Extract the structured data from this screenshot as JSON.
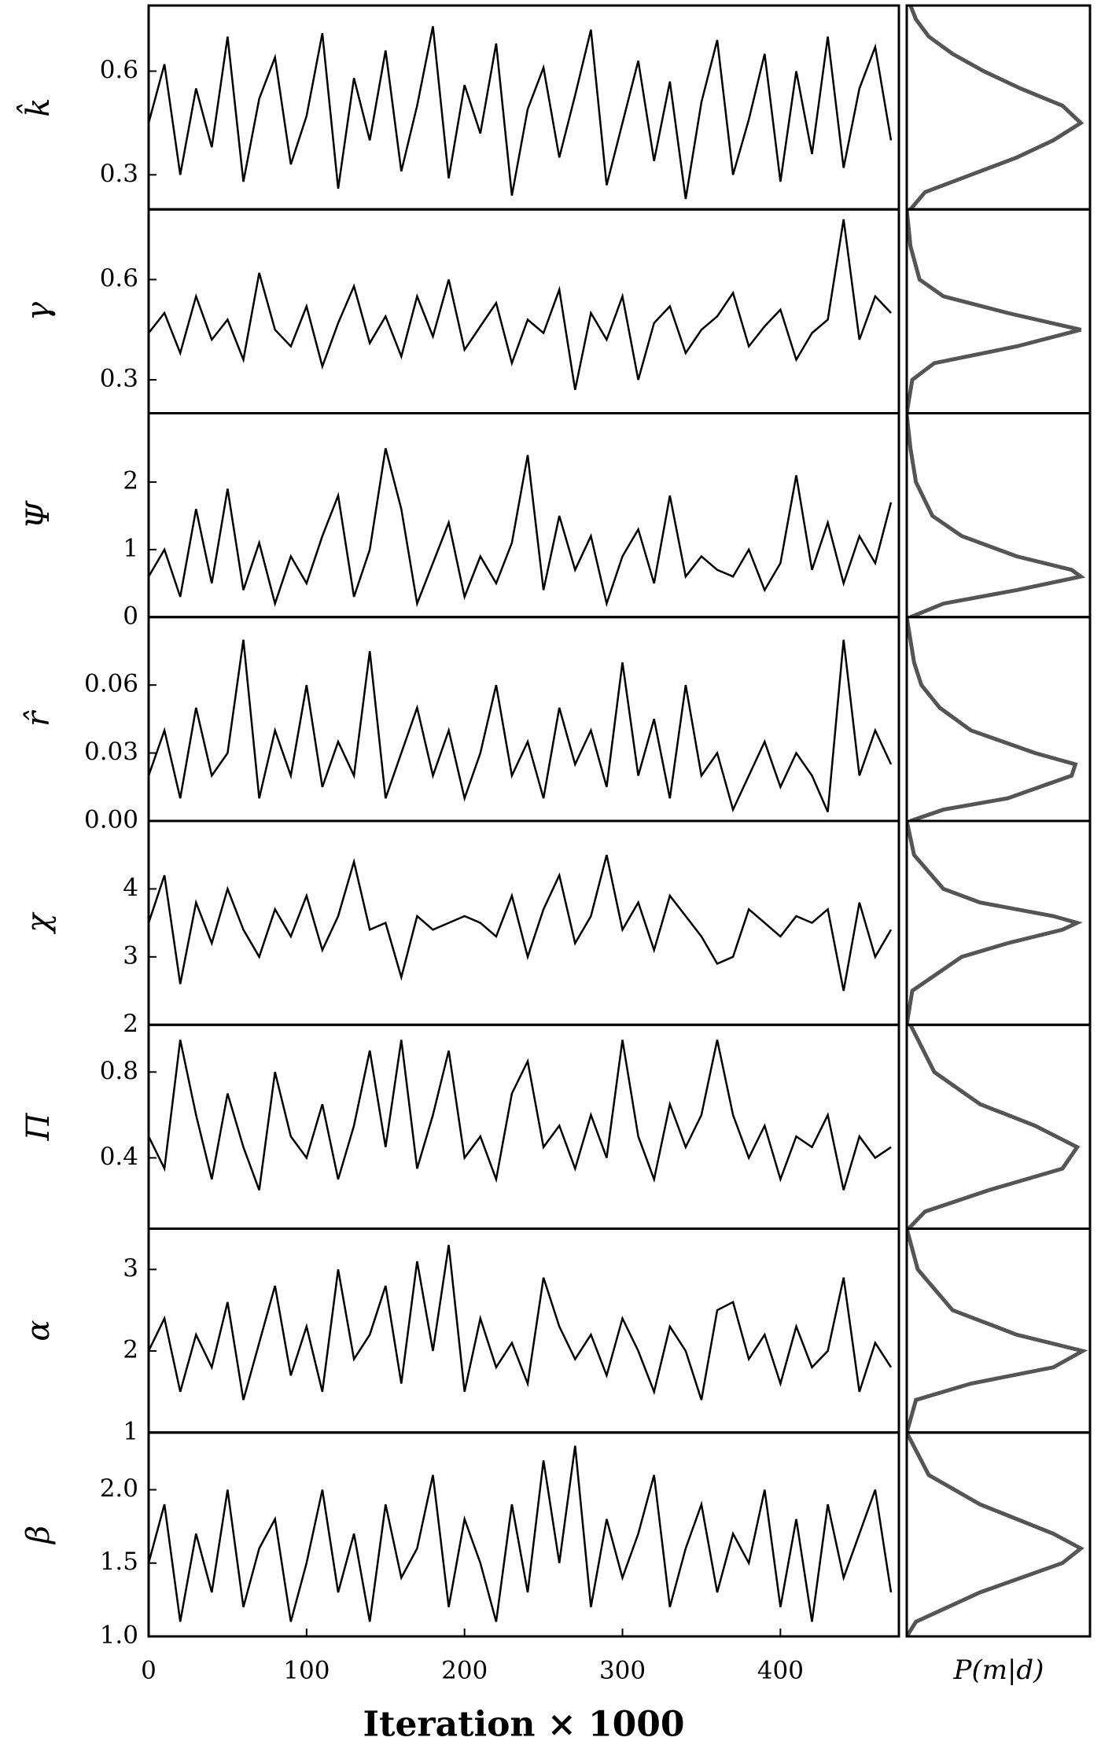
{
  "chart_data": {
    "type": "trace-panels",
    "xlabel": "Iteration × 1000",
    "density_label": "P(m|d)",
    "xlim": [
      0,
      475
    ],
    "xticks": [
      0,
      100,
      200,
      300,
      400
    ],
    "x": [
      0,
      10,
      20,
      30,
      40,
      50,
      60,
      70,
      80,
      90,
      100,
      110,
      120,
      130,
      140,
      150,
      160,
      170,
      180,
      190,
      200,
      210,
      220,
      230,
      240,
      250,
      260,
      270,
      280,
      290,
      300,
      310,
      320,
      330,
      340,
      350,
      360,
      370,
      380,
      390,
      400,
      410,
      420,
      430,
      440,
      450,
      460,
      470
    ],
    "panels": [
      {
        "ylabel": "k̂",
        "ylim": [
          0.2,
          0.79
        ],
        "yticks": [
          0.3,
          0.6
        ],
        "values": [
          0.45,
          0.62,
          0.3,
          0.55,
          0.38,
          0.7,
          0.28,
          0.52,
          0.64,
          0.33,
          0.47,
          0.71,
          0.26,
          0.58,
          0.4,
          0.66,
          0.31,
          0.5,
          0.73,
          0.29,
          0.56,
          0.42,
          0.68,
          0.24,
          0.49,
          0.61,
          0.35,
          0.53,
          0.72,
          0.27,
          0.45,
          0.63,
          0.34,
          0.57,
          0.23,
          0.51,
          0.69,
          0.3,
          0.46,
          0.65,
          0.28,
          0.6,
          0.36,
          0.7,
          0.32,
          0.55,
          0.67,
          0.4
        ],
        "density": {
          "levels": [
            0.2,
            0.25,
            0.3,
            0.35,
            0.4,
            0.45,
            0.5,
            0.55,
            0.6,
            0.65,
            0.7,
            0.75,
            0.79
          ],
          "values": [
            0.02,
            0.1,
            0.35,
            0.6,
            0.8,
            0.95,
            0.85,
            0.62,
            0.42,
            0.25,
            0.12,
            0.05,
            0.02
          ]
        }
      },
      {
        "ylabel": "γ",
        "ylim": [
          0.2,
          0.81
        ],
        "yticks": [
          0.3,
          0.6
        ],
        "values": [
          0.44,
          0.5,
          0.38,
          0.55,
          0.42,
          0.48,
          0.36,
          0.62,
          0.45,
          0.4,
          0.52,
          0.34,
          0.47,
          0.58,
          0.41,
          0.49,
          0.37,
          0.55,
          0.43,
          0.6,
          0.39,
          0.46,
          0.53,
          0.35,
          0.48,
          0.44,
          0.57,
          0.27,
          0.5,
          0.42,
          0.55,
          0.3,
          0.47,
          0.52,
          0.38,
          0.45,
          0.49,
          0.56,
          0.4,
          0.46,
          0.51,
          0.36,
          0.44,
          0.48,
          0.78,
          0.42,
          0.55,
          0.5
        ],
        "density": {
          "levels": [
            0.2,
            0.3,
            0.35,
            0.4,
            0.45,
            0.5,
            0.55,
            0.6,
            0.7,
            0.81
          ],
          "values": [
            0,
            0.03,
            0.15,
            0.6,
            0.95,
            0.55,
            0.2,
            0.07,
            0.02,
            0
          ]
        }
      },
      {
        "ylabel": "Ψ",
        "ylim": [
          0,
          3.02
        ],
        "yticks": [
          0,
          1,
          2
        ],
        "values": [
          0.6,
          1.0,
          0.3,
          1.6,
          0.5,
          1.9,
          0.4,
          1.1,
          0.2,
          0.9,
          0.5,
          1.2,
          1.8,
          0.3,
          1.0,
          2.5,
          1.6,
          0.2,
          0.8,
          1.4,
          0.3,
          0.9,
          0.5,
          1.1,
          2.4,
          0.4,
          1.5,
          0.7,
          1.2,
          0.2,
          0.9,
          1.3,
          0.5,
          1.8,
          0.6,
          0.9,
          0.7,
          0.6,
          1.0,
          0.4,
          0.8,
          2.1,
          0.7,
          1.4,
          0.5,
          1.2,
          0.8,
          1.7
        ],
        "density": {
          "levels": [
            0,
            0.2,
            0.4,
            0.6,
            0.7,
            0.9,
            1.2,
            1.5,
            2,
            2.5,
            3
          ],
          "values": [
            0.02,
            0.2,
            0.6,
            0.95,
            0.9,
            0.6,
            0.3,
            0.14,
            0.05,
            0.02,
            0
          ]
        }
      },
      {
        "ylabel": "r̂",
        "ylim": [
          0,
          0.09
        ],
        "yticks": [
          {
            "value": 0,
            "label": "0.00"
          },
          0.03,
          0.06
        ],
        "values": [
          0.02,
          0.04,
          0.01,
          0.05,
          0.02,
          0.03,
          0.08,
          0.01,
          0.04,
          0.02,
          0.06,
          0.015,
          0.035,
          0.02,
          0.075,
          0.01,
          0.03,
          0.05,
          0.02,
          0.04,
          0.01,
          0.03,
          0.06,
          0.02,
          0.035,
          0.01,
          0.05,
          0.025,
          0.04,
          0.015,
          0.07,
          0.02,
          0.045,
          0.01,
          0.06,
          0.02,
          0.03,
          0.005,
          0.02,
          0.035,
          0.015,
          0.03,
          0.02,
          0.004,
          0.08,
          0.02,
          0.04,
          0.025
        ],
        "density": {
          "levels": [
            0,
            0.005,
            0.01,
            0.02,
            0.025,
            0.03,
            0.04,
            0.05,
            0.06,
            0.07,
            0.09
          ],
          "values": [
            0.02,
            0.2,
            0.55,
            0.9,
            0.92,
            0.7,
            0.35,
            0.18,
            0.08,
            0.04,
            0
          ]
        }
      },
      {
        "ylabel": "χ",
        "ylim": [
          2,
          5
        ],
        "yticks": [
          2,
          3,
          4
        ],
        "values": [
          3.5,
          4.2,
          2.6,
          3.8,
          3.2,
          4.0,
          3.4,
          3.0,
          3.7,
          3.3,
          3.9,
          3.1,
          3.6,
          4.4,
          3.4,
          3.5,
          2.7,
          3.6,
          3.4,
          3.5,
          3.6,
          3.5,
          3.3,
          3.9,
          3.0,
          3.7,
          4.2,
          3.2,
          3.6,
          4.5,
          3.4,
          3.8,
          3.1,
          3.9,
          3.6,
          3.3,
          2.9,
          3.0,
          3.7,
          3.5,
          3.3,
          3.6,
          3.5,
          3.7,
          2.5,
          3.8,
          3.0,
          3.4
        ],
        "density": {
          "levels": [
            2,
            2.5,
            3,
            3.2,
            3.4,
            3.5,
            3.6,
            3.8,
            4,
            4.5,
            5
          ],
          "values": [
            0,
            0.03,
            0.3,
            0.55,
            0.85,
            0.93,
            0.8,
            0.4,
            0.2,
            0.04,
            0
          ]
        }
      },
      {
        "ylabel": "Π",
        "ylim": [
          0.07,
          1.02
        ],
        "yticks": [
          0.4,
          0.8
        ],
        "values": [
          0.5,
          0.35,
          0.95,
          0.6,
          0.3,
          0.7,
          0.45,
          0.25,
          0.8,
          0.5,
          0.4,
          0.65,
          0.3,
          0.55,
          0.9,
          0.45,
          0.95,
          0.35,
          0.6,
          0.9,
          0.4,
          0.5,
          0.3,
          0.7,
          0.85,
          0.45,
          0.55,
          0.35,
          0.6,
          0.4,
          0.95,
          0.5,
          0.3,
          0.65,
          0.45,
          0.6,
          0.95,
          0.6,
          0.4,
          0.55,
          0.3,
          0.5,
          0.45,
          0.6,
          0.25,
          0.5,
          0.4,
          0.45
        ],
        "density": {
          "levels": [
            0.07,
            0.15,
            0.25,
            0.35,
            0.45,
            0.55,
            0.65,
            0.8,
            1.02
          ],
          "values": [
            0.01,
            0.1,
            0.45,
            0.85,
            0.93,
            0.7,
            0.4,
            0.15,
            0.02
          ]
        }
      },
      {
        "ylabel": "α",
        "ylim": [
          1,
          3.5
        ],
        "yticks": [
          1,
          2,
          3
        ],
        "values": [
          2.0,
          2.4,
          1.5,
          2.2,
          1.8,
          2.6,
          1.4,
          2.1,
          2.8,
          1.7,
          2.3,
          1.5,
          3.0,
          1.9,
          2.2,
          2.8,
          1.6,
          3.1,
          2.0,
          3.3,
          1.5,
          2.4,
          1.8,
          2.1,
          1.6,
          2.9,
          2.3,
          1.9,
          2.2,
          1.7,
          2.4,
          2.0,
          1.5,
          2.3,
          2.0,
          1.4,
          2.5,
          2.6,
          1.9,
          2.2,
          1.6,
          2.3,
          1.8,
          2.0,
          2.9,
          1.5,
          2.1,
          1.8
        ],
        "density": {
          "levels": [
            1,
            1.4,
            1.6,
            1.8,
            2,
            2.2,
            2.5,
            3,
            3.5
          ],
          "values": [
            0,
            0.05,
            0.35,
            0.8,
            0.96,
            0.6,
            0.25,
            0.06,
            0
          ]
        }
      },
      {
        "ylabel": "β",
        "ylim": [
          1,
          2.39
        ],
        "yticks": [
          {
            "value": 1,
            "label": "1.0"
          },
          1.5,
          {
            "value": 2,
            "label": "2.0"
          }
        ],
        "values": [
          1.5,
          1.9,
          1.1,
          1.7,
          1.3,
          2.0,
          1.2,
          1.6,
          1.8,
          1.1,
          1.5,
          2.0,
          1.3,
          1.7,
          1.1,
          1.9,
          1.4,
          1.6,
          2.1,
          1.2,
          1.8,
          1.5,
          1.1,
          1.9,
          1.3,
          2.2,
          1.5,
          2.3,
          1.2,
          1.8,
          1.4,
          1.7,
          2.1,
          1.2,
          1.6,
          1.9,
          1.3,
          1.7,
          1.5,
          2.0,
          1.2,
          1.8,
          1.1,
          1.9,
          1.4,
          1.7,
          2.0,
          1.3
        ],
        "density": {
          "levels": [
            1,
            1.1,
            1.3,
            1.5,
            1.6,
            1.7,
            1.9,
            2.1,
            2.39
          ],
          "values": [
            0,
            0.05,
            0.4,
            0.85,
            0.95,
            0.8,
            0.4,
            0.12,
            0
          ]
        }
      }
    ]
  }
}
